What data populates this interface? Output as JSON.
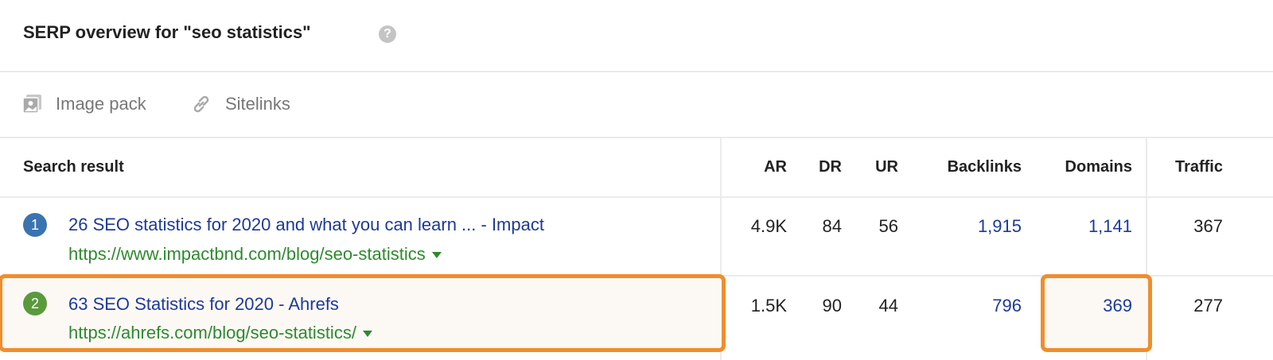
{
  "header": {
    "title": "SERP overview for \"seo statistics\"",
    "help_icon": "?"
  },
  "features": [
    {
      "label": "Image pack",
      "icon": "image-pack-icon"
    },
    {
      "label": "Sitelinks",
      "icon": "link-icon"
    }
  ],
  "table": {
    "columns": [
      "Search result",
      "AR",
      "DR",
      "UR",
      "Backlinks",
      "Domains",
      "Traffic"
    ],
    "rows": [
      {
        "position": "1",
        "title": "26 SEO statistics for 2020 and what you can learn ... - Impact",
        "url": "https://www.impactbnd.com/blog/seo-statistics",
        "ar": "4.9K",
        "dr": "84",
        "ur": "56",
        "backlinks": "1,915",
        "domains": "1,141",
        "traffic": "367",
        "badge_color": "#3b73b0",
        "highlighted": false
      },
      {
        "position": "2",
        "title": "63 SEO Statistics for 2020 - Ahrefs",
        "url": "https://ahrefs.com/blog/seo-statistics/",
        "ar": "1.5K",
        "dr": "90",
        "ur": "44",
        "backlinks": "796",
        "domains": "369",
        "traffic": "277",
        "badge_color": "#5a9a3c",
        "highlighted": true
      }
    ]
  },
  "colors": {
    "highlight": "#ef8e2d",
    "link": "#1d3a99",
    "url": "#2e8a2e"
  }
}
